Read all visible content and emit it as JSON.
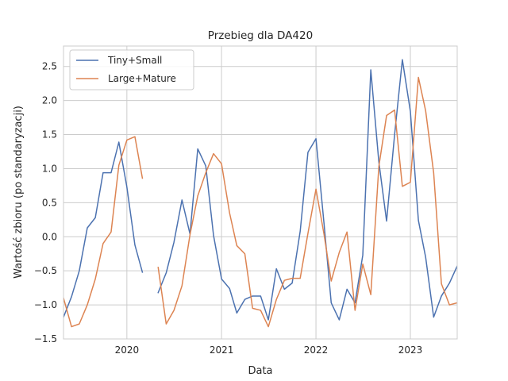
{
  "chart_data": {
    "type": "line",
    "title": "Przebieg dla DA420",
    "xlabel": "Data",
    "ylabel": "Wartość zbioru (po standaryzacji)",
    "xlim": [
      "2019-05-01",
      "2023-07-01"
    ],
    "ylim": [
      -1.5,
      2.8
    ],
    "xticks": [
      {
        "date": "2020-01-01",
        "label": "2020"
      },
      {
        "date": "2021-01-01",
        "label": "2021"
      },
      {
        "date": "2022-01-01",
        "label": "2022"
      },
      {
        "date": "2023-01-01",
        "label": "2023"
      }
    ],
    "yticks": [
      -1.5,
      -1.0,
      -0.5,
      0.0,
      0.5,
      1.0,
      1.5,
      2.0,
      2.5
    ],
    "ytick_labels": [
      "−1.5",
      "−1.0",
      "−0.5",
      "0.0",
      "0.5",
      "1.0",
      "1.5",
      "2.0",
      "2.5"
    ],
    "grid": true,
    "legend_position": "top-left",
    "series": [
      {
        "name": "Tiny+Small",
        "color": "#4c72b0",
        "points": [
          [
            "2019-05-01",
            -1.18
          ],
          [
            "2019-06-01",
            -0.88
          ],
          [
            "2019-07-01",
            -0.5
          ],
          [
            "2019-08-01",
            0.13
          ],
          [
            "2019-09-01",
            0.28
          ],
          [
            "2019-10-01",
            0.94
          ],
          [
            "2019-11-01",
            0.94
          ],
          [
            "2019-12-01",
            1.39
          ],
          [
            "2020-01-01",
            0.73
          ],
          [
            "2020-02-01",
            -0.12
          ],
          [
            "2020-03-01",
            -0.52
          ],
          null,
          [
            "2020-05-01",
            -0.82
          ],
          [
            "2020-06-01",
            -0.53
          ],
          [
            "2020-07-01",
            -0.08
          ],
          [
            "2020-08-01",
            0.54
          ],
          [
            "2020-09-01",
            0.04
          ],
          [
            "2020-10-01",
            1.29
          ],
          [
            "2020-11-01",
            1.04
          ],
          [
            "2020-12-01",
            0.02
          ],
          [
            "2021-01-01",
            -0.62
          ],
          [
            "2021-02-01",
            -0.76
          ],
          [
            "2021-03-01",
            -1.12
          ],
          [
            "2021-04-01",
            -0.92
          ],
          [
            "2021-05-01",
            -0.87
          ],
          [
            "2021-06-01",
            -0.87
          ],
          [
            "2021-07-01",
            -1.22
          ],
          [
            "2021-08-01",
            -0.47
          ],
          [
            "2021-09-01",
            -0.77
          ],
          [
            "2021-10-01",
            -0.68
          ],
          [
            "2021-11-01",
            0.08
          ],
          [
            "2021-12-01",
            1.24
          ],
          [
            "2022-01-01",
            1.44
          ],
          [
            "2022-02-01",
            0.2
          ],
          [
            "2022-03-01",
            -0.97
          ],
          [
            "2022-04-01",
            -1.22
          ],
          [
            "2022-05-01",
            -0.77
          ],
          [
            "2022-06-01",
            -0.97
          ],
          [
            "2022-07-01",
            -0.27
          ],
          [
            "2022-08-01",
            2.45
          ],
          [
            "2022-09-01",
            1.1
          ],
          [
            "2022-10-01",
            0.23
          ],
          [
            "2022-11-01",
            1.5
          ],
          [
            "2022-12-01",
            2.6
          ],
          [
            "2023-01-01",
            1.84
          ],
          [
            "2023-02-01",
            0.24
          ],
          [
            "2023-03-01",
            -0.3
          ],
          [
            "2023-04-01",
            -1.18
          ],
          [
            "2023-05-01",
            -0.87
          ],
          [
            "2023-06-01",
            -0.68
          ],
          [
            "2023-07-01",
            -0.43
          ]
        ]
      },
      {
        "name": "Large+Mature",
        "color": "#dd8452",
        "points": [
          [
            "2019-05-01",
            -0.9
          ],
          [
            "2019-06-01",
            -1.32
          ],
          [
            "2019-07-01",
            -1.28
          ],
          [
            "2019-08-01",
            -1.0
          ],
          [
            "2019-09-01",
            -0.62
          ],
          [
            "2019-10-01",
            -0.1
          ],
          [
            "2019-11-01",
            0.07
          ],
          [
            "2019-12-01",
            1.05
          ],
          [
            "2020-01-01",
            1.42
          ],
          [
            "2020-02-01",
            1.47
          ],
          [
            "2020-03-01",
            0.86
          ],
          null,
          [
            "2020-05-01",
            -0.45
          ],
          [
            "2020-06-01",
            -1.28
          ],
          [
            "2020-07-01",
            -1.08
          ],
          [
            "2020-08-01",
            -0.72
          ],
          [
            "2020-09-01",
            0.03
          ],
          [
            "2020-10-01",
            0.6
          ],
          [
            "2020-11-01",
            0.94
          ],
          [
            "2020-12-01",
            1.22
          ],
          [
            "2021-01-01",
            1.07
          ],
          [
            "2021-02-01",
            0.35
          ],
          [
            "2021-03-01",
            -0.13
          ],
          [
            "2021-04-01",
            -0.25
          ],
          [
            "2021-05-01",
            -1.05
          ],
          [
            "2021-06-01",
            -1.08
          ],
          [
            "2021-07-01",
            -1.32
          ],
          [
            "2021-08-01",
            -0.92
          ],
          [
            "2021-09-01",
            -0.64
          ],
          [
            "2021-10-01",
            -0.61
          ],
          [
            "2021-11-01",
            -0.61
          ],
          [
            "2021-12-01",
            0.05
          ],
          [
            "2022-01-01",
            0.7
          ],
          [
            "2022-02-01",
            0.04
          ],
          [
            "2022-03-01",
            -0.65
          ],
          [
            "2022-04-01",
            -0.23
          ],
          [
            "2022-05-01",
            0.07
          ],
          [
            "2022-06-01",
            -1.08
          ],
          [
            "2022-07-01",
            -0.4
          ],
          [
            "2022-08-01",
            -0.85
          ],
          [
            "2022-09-01",
            1.03
          ],
          [
            "2022-10-01",
            1.78
          ],
          [
            "2022-11-01",
            1.86
          ],
          [
            "2022-12-01",
            0.74
          ],
          [
            "2023-01-01",
            0.8
          ],
          [
            "2023-02-01",
            2.34
          ],
          [
            "2023-03-01",
            1.85
          ],
          [
            "2023-04-01",
            0.94
          ],
          [
            "2023-05-01",
            -0.69
          ],
          [
            "2023-06-01",
            -1.0
          ],
          [
            "2023-07-01",
            -0.97
          ]
        ]
      }
    ]
  }
}
